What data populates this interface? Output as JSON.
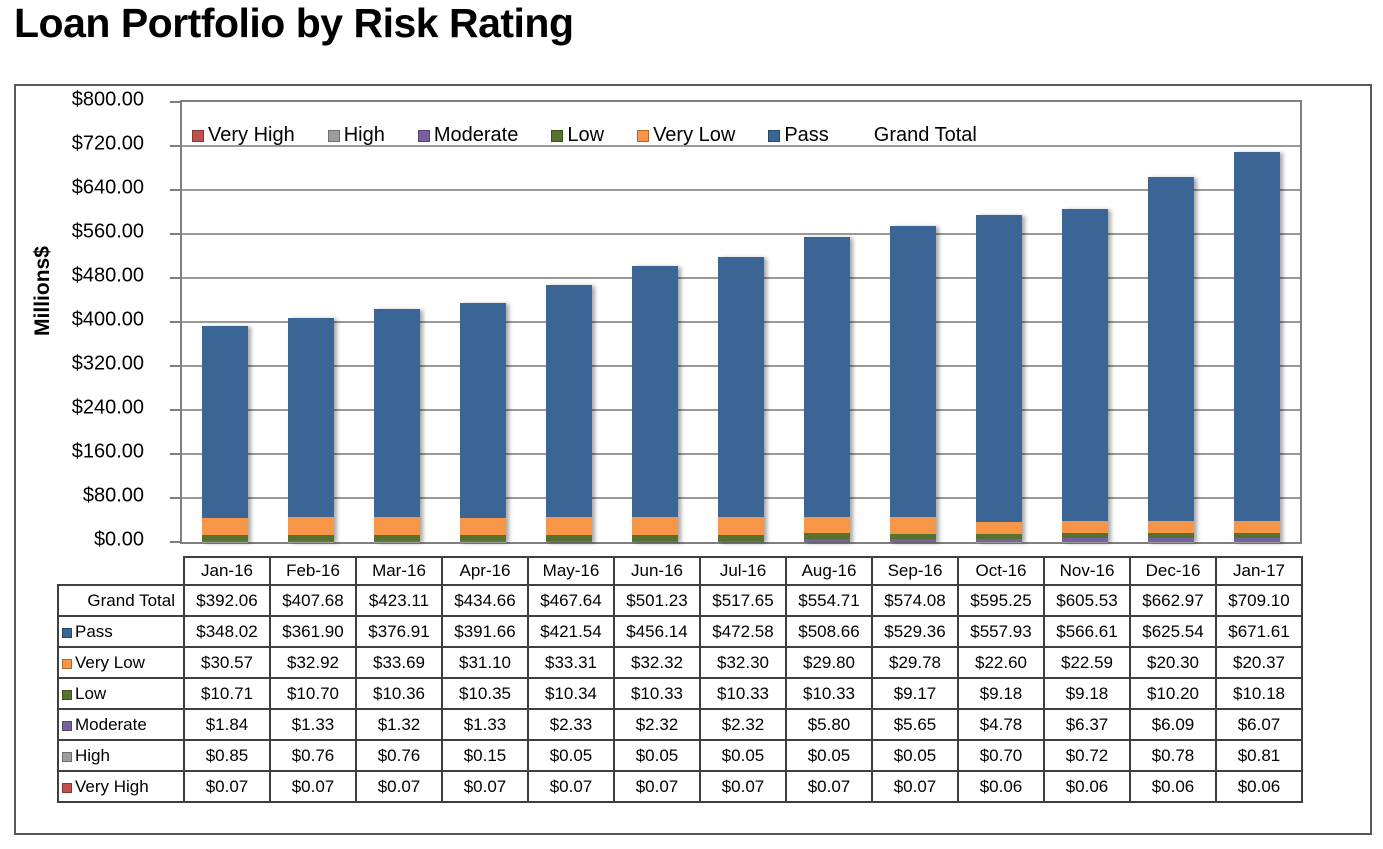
{
  "page_title": "Loan Portfolio by Risk Rating",
  "chart_data": {
    "type": "bar",
    "stacked": true,
    "title": "Loan Portfolio by Risk Rating",
    "xlabel": "",
    "ylabel": "Millions$",
    "ylim": [
      0,
      800
    ],
    "ytick_step": 80,
    "value_format": "$#,##0.00",
    "grid": true,
    "legend_position": "top-inside-horizontal",
    "categories": [
      "Jan-16",
      "Feb-16",
      "Mar-16",
      "Apr-16",
      "May-16",
      "Jun-16",
      "Jul-16",
      "Aug-16",
      "Sep-16",
      "Oct-16",
      "Nov-16",
      "Dec-16",
      "Jan-17"
    ],
    "series": [
      {
        "name": "Very High",
        "color": "#C0504D",
        "values": [
          0.07,
          0.07,
          0.07,
          0.07,
          0.07,
          0.07,
          0.07,
          0.07,
          0.07,
          0.06,
          0.06,
          0.06,
          0.06
        ]
      },
      {
        "name": "High",
        "color": "#9C9C9C",
        "values": [
          0.85,
          0.76,
          0.76,
          0.15,
          0.05,
          0.05,
          0.05,
          0.05,
          0.05,
          0.7,
          0.72,
          0.78,
          0.81
        ]
      },
      {
        "name": "Moderate",
        "color": "#7762A1",
        "values": [
          1.84,
          1.33,
          1.32,
          1.33,
          2.33,
          2.32,
          2.32,
          5.8,
          5.65,
          4.78,
          6.37,
          6.09,
          6.07
        ]
      },
      {
        "name": "Low",
        "color": "#57712E",
        "values": [
          10.71,
          10.7,
          10.36,
          10.35,
          10.34,
          10.33,
          10.33,
          10.33,
          9.17,
          9.18,
          9.18,
          10.2,
          10.18
        ]
      },
      {
        "name": "Very Low",
        "color": "#F79646",
        "values": [
          30.57,
          32.92,
          33.69,
          31.1,
          33.31,
          32.32,
          32.3,
          29.8,
          29.78,
          22.6,
          22.59,
          20.3,
          20.37
        ]
      },
      {
        "name": "Pass",
        "color": "#3A6595",
        "values": [
          348.02,
          361.9,
          376.91,
          391.66,
          421.54,
          456.14,
          472.58,
          508.66,
          529.36,
          557.93,
          566.61,
          625.54,
          671.61
        ]
      }
    ],
    "grand_total": {
      "name": "Grand Total",
      "values": [
        392.06,
        407.68,
        423.11,
        434.66,
        467.64,
        501.23,
        517.65,
        554.71,
        574.08,
        595.25,
        605.53,
        662.97,
        709.1
      ]
    },
    "legend_items": [
      {
        "label": "Very High",
        "color": "#C0504D"
      },
      {
        "label": "High",
        "color": "#9C9C9C"
      },
      {
        "label": "Moderate",
        "color": "#7762A1"
      },
      {
        "label": "Low",
        "color": "#57712E"
      },
      {
        "label": "Very Low",
        "color": "#F79646"
      },
      {
        "label": "Pass",
        "color": "#3A6595"
      },
      {
        "label": "Grand Total",
        "color": null
      }
    ],
    "table_row_order": [
      "Grand Total",
      "Pass",
      "Very Low",
      "Low",
      "Moderate",
      "High",
      "Very High"
    ]
  }
}
